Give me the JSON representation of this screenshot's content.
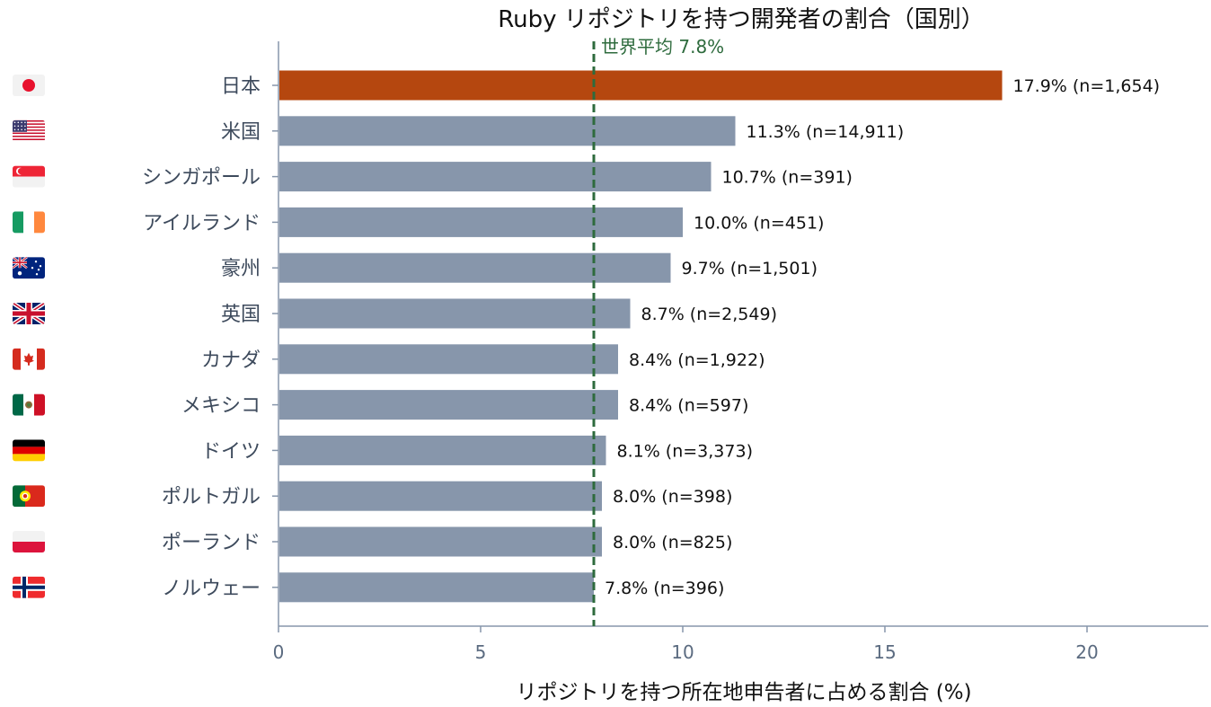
{
  "chart_data": {
    "type": "bar",
    "orientation": "horizontal",
    "title": "Ruby リポジトリを持つ開発者の割合（国別）",
    "xlabel": "リポジトリを持つ所在地申告者に占める割合 (%)",
    "ylabel": "",
    "xlim": [
      0,
      23
    ],
    "xticks": [
      0,
      5,
      10,
      15,
      20
    ],
    "grid": false,
    "categories": [
      "日本",
      "米国",
      "シンガポール",
      "アイルランド",
      "豪州",
      "英国",
      "カナダ",
      "メキシコ",
      "ドイツ",
      "ポルトガル",
      "ポーランド",
      "ノルウェー"
    ],
    "flag_icons": [
      "japan-flag-icon",
      "usa-flag-icon",
      "singapore-flag-icon",
      "ireland-flag-icon",
      "australia-flag-icon",
      "uk-flag-icon",
      "canada-flag-icon",
      "mexico-flag-icon",
      "germany-flag-icon",
      "portugal-flag-icon",
      "poland-flag-icon",
      "norway-flag-icon"
    ],
    "values": [
      17.9,
      11.3,
      10.7,
      10.0,
      9.7,
      8.7,
      8.4,
      8.4,
      8.1,
      8.0,
      8.0,
      7.8
    ],
    "value_labels": [
      "17.9%  (n=1,654)",
      "11.3%  (n=14,911)",
      "10.7%  (n=391)",
      "10.0%  (n=451)",
      "9.7%  (n=1,501)",
      "8.7%  (n=2,549)",
      "8.4%  (n=1,922)",
      "8.4%  (n=597)",
      "8.1%  (n=3,373)",
      "8.0%  (n=398)",
      "8.0%  (n=825)",
      "7.8%  (n=396)"
    ],
    "reference_line": {
      "value": 7.8,
      "label": "世界平均 7.8%",
      "color": "#2e6b3d"
    },
    "colors": {
      "highlight": "#b5470f",
      "default": "#8796ab",
      "axis": "#8796ab"
    }
  }
}
